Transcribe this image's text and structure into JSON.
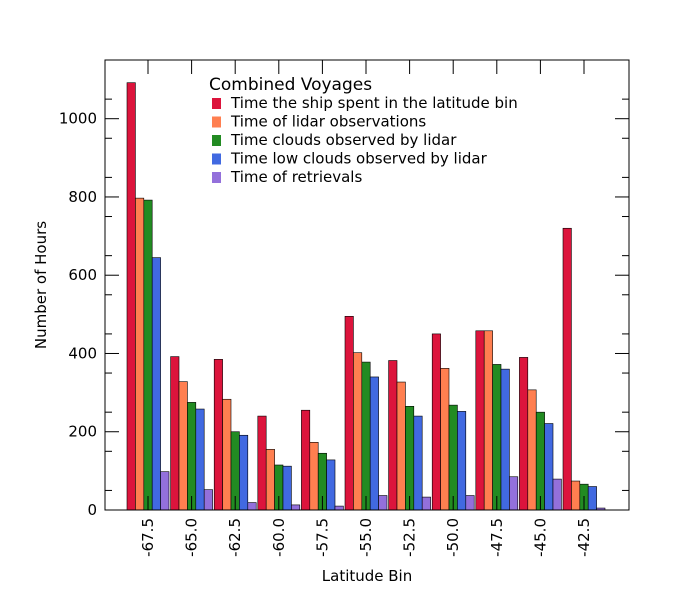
{
  "chart_data": {
    "type": "bar",
    "title": "",
    "xlabel": "Latitude Bin",
    "ylabel": "Number of Hours",
    "ylim": [
      0,
      1150
    ],
    "yticks": [
      0,
      200,
      400,
      600,
      800,
      1000
    ],
    "grid": false,
    "legend_title": "Combined Voyages",
    "legend_position": "top-center",
    "categories": [
      "-67.5",
      "-65.0",
      "-62.5",
      "-60.0",
      "-57.5",
      "-55.0",
      "-52.5",
      "-50.0",
      "-47.5",
      "-45.0",
      "-42.5"
    ],
    "series": [
      {
        "name": "Time the ship spent in the latitude bin",
        "color": "#dc143c",
        "values": [
          1092,
          392,
          385,
          240,
          255,
          495,
          382,
          450,
          458,
          390,
          720
        ]
      },
      {
        "name": "Time of lidar observations",
        "color": "#ff7f50",
        "values": [
          797,
          328,
          283,
          155,
          173,
          402,
          327,
          362,
          458,
          307,
          74
        ]
      },
      {
        "name": "Time clouds observed by lidar",
        "color": "#228b22",
        "values": [
          792,
          275,
          200,
          115,
          145,
          378,
          265,
          268,
          372,
          250,
          66
        ]
      },
      {
        "name": "Time low clouds observed by lidar",
        "color": "#4169e1",
        "values": [
          645,
          258,
          191,
          112,
          128,
          340,
          240,
          252,
          360,
          221,
          60
        ]
      },
      {
        "name": "Time of retrievals",
        "color": "#9370db",
        "values": [
          98,
          52,
          19,
          13,
          10,
          37,
          33,
          37,
          85,
          79,
          5
        ]
      }
    ]
  }
}
